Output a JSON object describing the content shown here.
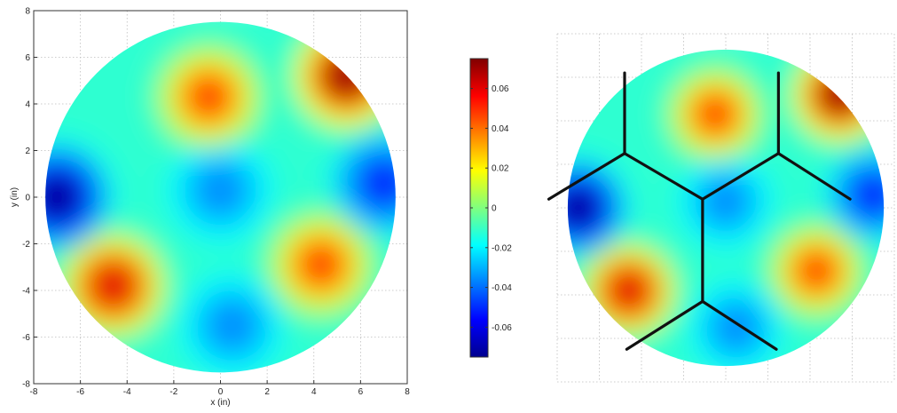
{
  "chart_data": [
    {
      "type": "heatmap",
      "title": "",
      "xlabel": "x (in)",
      "ylabel": "y (in)",
      "xlim": [
        -8,
        8
      ],
      "ylim": [
        -8,
        8
      ],
      "x_ticks": [
        -8,
        -6,
        -4,
        -2,
        0,
        2,
        4,
        6,
        8
      ],
      "y_ticks": [
        -8,
        -6,
        -4,
        -2,
        0,
        2,
        4,
        6,
        8
      ],
      "grid": true,
      "aperture_radius": 7.5,
      "hot_spots": [
        {
          "x": -0.5,
          "y": 4.3,
          "value": 0.045
        },
        {
          "x": 5.4,
          "y": 5.2,
          "value": 0.07
        },
        {
          "x": -4.6,
          "y": -3.8,
          "value": 0.06
        },
        {
          "x": 4.3,
          "y": -2.9,
          "value": 0.045
        }
      ],
      "cold_spots": [
        {
          "x": -7.0,
          "y": 0.0,
          "value": -0.07
        },
        {
          "x": 7.0,
          "y": 0.6,
          "value": -0.05
        },
        {
          "x": 0.0,
          "y": 0.3,
          "value": -0.035
        },
        {
          "x": 0.5,
          "y": -5.5,
          "value": -0.035
        }
      ]
    },
    {
      "type": "heatmap",
      "title": "",
      "xlim": [
        -8,
        8
      ],
      "ylim": [
        -8,
        8
      ],
      "grid": true,
      "segment_boundaries": [
        [
          [
            -4.8,
            6.2
          ],
          [
            -4.8,
            2.5
          ]
        ],
        [
          [
            2.5,
            6.2
          ],
          [
            2.5,
            2.5
          ]
        ],
        [
          [
            -4.8,
            2.5
          ],
          [
            -1.1,
            0.4
          ]
        ],
        [
          [
            2.5,
            2.5
          ],
          [
            -1.1,
            0.4
          ]
        ],
        [
          [
            -4.8,
            2.5
          ],
          [
            -8.4,
            0.4
          ]
        ],
        [
          [
            2.5,
            2.5
          ],
          [
            5.9,
            0.4
          ]
        ],
        [
          [
            -1.1,
            0.4
          ],
          [
            -1.1,
            -4.3
          ]
        ],
        [
          [
            -1.1,
            -4.3
          ],
          [
            -4.7,
            -6.5
          ]
        ],
        [
          [
            -1.1,
            -4.3
          ],
          [
            2.4,
            -6.5
          ]
        ]
      ]
    }
  ],
  "colorbar": {
    "min": -0.075,
    "max": 0.075,
    "tick_values": [
      0.06,
      0.04,
      0.02,
      0,
      -0.02,
      -0.04,
      -0.06
    ],
    "tick_labels": [
      "0.06",
      "0.04",
      "0.02",
      "0",
      "-0.02",
      "-0.04",
      "-0.06"
    ]
  }
}
